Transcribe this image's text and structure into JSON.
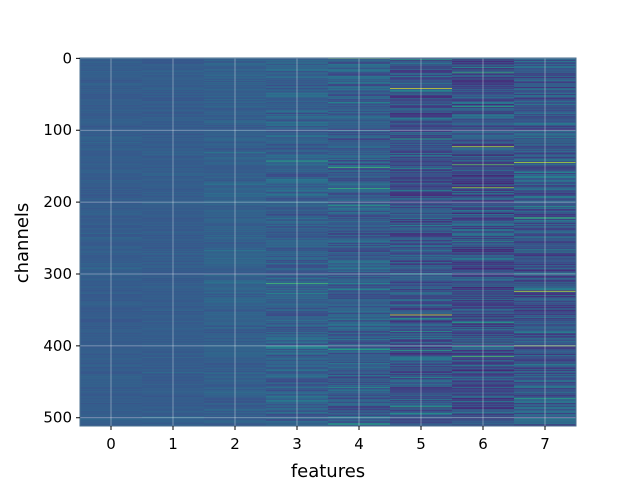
{
  "chart_data": {
    "type": "heatmap",
    "title": "",
    "xlabel": "features",
    "ylabel": "channels",
    "x_ticks": [
      0,
      1,
      2,
      3,
      4,
      5,
      6,
      7
    ],
    "y_ticks": [
      0,
      100,
      200,
      300,
      400,
      500
    ],
    "xlim": [
      -0.5,
      7.5
    ],
    "ylim": [
      511.5,
      -0.5
    ],
    "n_channels": 512,
    "n_features": 8,
    "grid": true,
    "colormap": "viridis",
    "base_color": "#3b5b8c",
    "columns": [
      {
        "feature": 0,
        "mean_color": "#365a8d",
        "variance": 0.06
      },
      {
        "feature": 1,
        "mean_color": "#355a8e",
        "variance": 0.06
      },
      {
        "feature": 2,
        "mean_color": "#335d8c",
        "variance": 0.09
      },
      {
        "feature": 3,
        "mean_color": "#335a8b",
        "variance": 0.18
      },
      {
        "feature": 4,
        "mean_color": "#30578b",
        "variance": 0.22
      },
      {
        "feature": 5,
        "mean_color": "#2f4a88",
        "variance": 0.28
      },
      {
        "feature": 6,
        "mean_color": "#2e4a87",
        "variance": 0.32
      },
      {
        "feature": 7,
        "mean_color": "#2f5189",
        "variance": 0.3
      }
    ],
    "highlights": [
      {
        "feature": 3,
        "channel": 143,
        "value": 0.62
      },
      {
        "feature": 3,
        "channel": 313,
        "value": 0.7
      },
      {
        "feature": 4,
        "channel": 0,
        "value": 0.85
      },
      {
        "feature": 4,
        "channel": 152,
        "value": 0.68
      },
      {
        "feature": 4,
        "channel": 181,
        "value": 0.66
      },
      {
        "feature": 4,
        "channel": 405,
        "value": 0.62
      },
      {
        "feature": 5,
        "channel": 42,
        "value": 0.95
      },
      {
        "feature": 5,
        "channel": 357,
        "value": 0.95
      },
      {
        "feature": 5,
        "channel": 112,
        "value": 0.6
      },
      {
        "feature": 6,
        "channel": 20,
        "value": 0.65
      },
      {
        "feature": 6,
        "channel": 123,
        "value": 0.9
      },
      {
        "feature": 6,
        "channel": 180,
        "value": 0.85
      },
      {
        "feature": 6,
        "channel": 148,
        "value": 0.75
      },
      {
        "feature": 6,
        "channel": 368,
        "value": 0.6
      },
      {
        "feature": 7,
        "channel": 145,
        "value": 0.9
      },
      {
        "feature": 7,
        "channel": 324,
        "value": 0.92
      },
      {
        "feature": 7,
        "channel": 400,
        "value": 0.85
      },
      {
        "feature": 7,
        "channel": 222,
        "value": 0.7
      }
    ]
  }
}
